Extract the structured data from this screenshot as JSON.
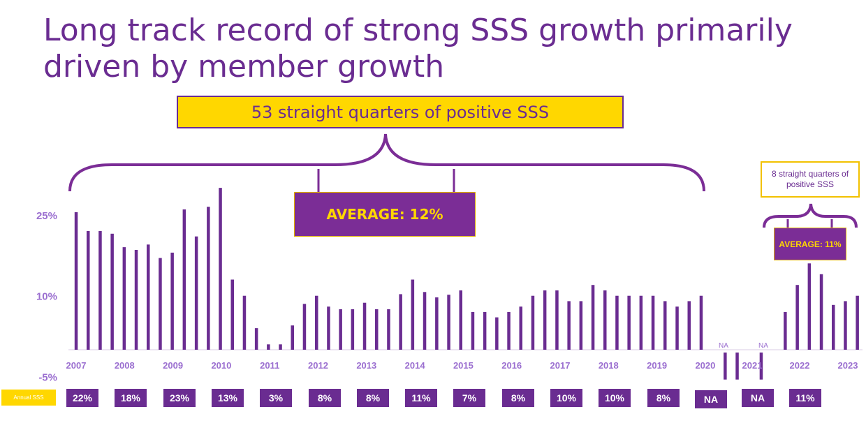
{
  "title": "Long track record of strong SSS growth primarily driven by member growth",
  "callouts": {
    "main_span": "53 straight quarters of positive SSS",
    "main_average": "AVERAGE:  12%",
    "recent_span": "8 straight quarters of positive SSS",
    "recent_average": "AVERAGE: 11%"
  },
  "annual": {
    "label": "Annual SSS",
    "values": [
      "22%",
      "18%",
      "23%",
      "13%",
      "3%",
      "8%",
      "8%",
      "11%",
      "7%",
      "8%",
      "10%",
      "10%",
      "8%",
      "NA",
      "NA",
      "11%"
    ]
  },
  "colors": {
    "bar": "#6a2c91",
    "axis_label": "#9b6fd0",
    "accent": "#ffd700",
    "box": "#7b2d96"
  },
  "chart_data": {
    "type": "bar",
    "yticks": [
      25,
      10,
      -5
    ],
    "ytick_labels": [
      "25%",
      "10%",
      "-5%"
    ],
    "ylim": [
      -5,
      30
    ],
    "years": [
      "2007",
      "2008",
      "2009",
      "2010",
      "2011",
      "2012",
      "2013",
      "2014",
      "2015",
      "2016",
      "2017",
      "2018",
      "2019",
      "2020",
      "2021",
      "2022",
      "2023"
    ],
    "na_labels": [
      "NA",
      "NA"
    ],
    "values": [
      25.5,
      22,
      22,
      21.5,
      19,
      18.5,
      19.5,
      17,
      18,
      26,
      21,
      26.5,
      30,
      13,
      10,
      4,
      1,
      1,
      4.5,
      8.5,
      10,
      8,
      7.5,
      7.5,
      8.7,
      7.5,
      7.5,
      10.3,
      13,
      10.7,
      9.7,
      10.2,
      11,
      7,
      7,
      6,
      7,
      8,
      10,
      11,
      11,
      9,
      9,
      12,
      11,
      10,
      10,
      10,
      10,
      9,
      8,
      9,
      10,
      null,
      -5,
      -5,
      null,
      -5,
      null,
      7,
      12,
      16,
      14,
      8.3,
      9,
      10,
      9
    ]
  }
}
